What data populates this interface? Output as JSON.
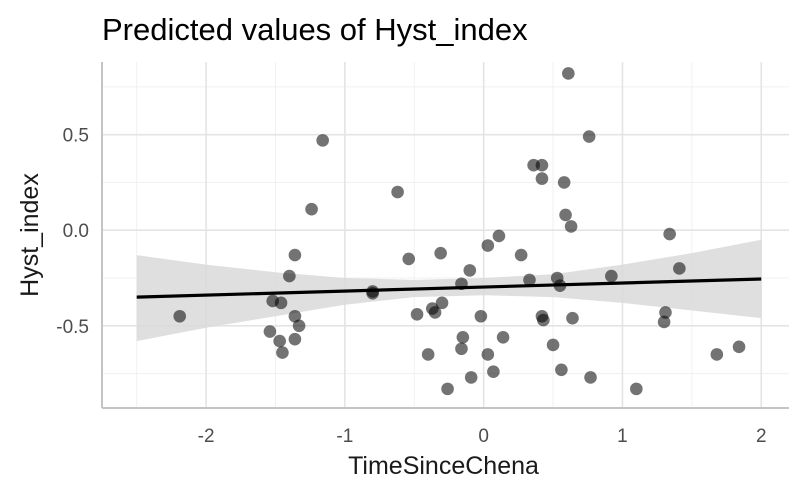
{
  "chart_data": {
    "type": "scatter",
    "title": "Predicted values of Hyst_index",
    "xlabel": "TimeSinceChena",
    "ylabel": "Hyst_index",
    "xlim": [
      -2.75,
      2.2
    ],
    "ylim": [
      -0.93,
      0.88
    ],
    "x_ticks": [
      -2,
      -1,
      0,
      1,
      2
    ],
    "x_tick_labels": [
      "-2",
      "-1",
      "0",
      "1",
      "2"
    ],
    "y_ticks": [
      -0.5,
      0.0,
      0.5
    ],
    "y_tick_labels": [
      "-0.5",
      "0.0",
      "0.5"
    ],
    "x_minor_ticks": [
      -2.5,
      -1.5,
      -0.5,
      0.5,
      1.5
    ],
    "y_minor_ticks": [
      -0.75,
      -0.25,
      0.25,
      0.75
    ],
    "grid": true,
    "colors": {
      "points": "#000000",
      "line": "#000000",
      "ribbon": "#d9d9d9"
    },
    "fit_line": {
      "x": [
        -2.5,
        2.0
      ],
      "y": [
        -0.35,
        -0.255
      ]
    },
    "confidence_band": {
      "x": [
        -2.5,
        -2.0,
        -1.5,
        -1.0,
        -0.5,
        0.0,
        0.5,
        1.0,
        1.5,
        2.0
      ],
      "lower": [
        -0.58,
        -0.51,
        -0.45,
        -0.39,
        -0.35,
        -0.34,
        -0.35,
        -0.38,
        -0.42,
        -0.46
      ],
      "upper": [
        -0.13,
        -0.18,
        -0.22,
        -0.25,
        -0.26,
        -0.25,
        -0.23,
        -0.18,
        -0.12,
        -0.05
      ]
    },
    "points": [
      {
        "x": -2.19,
        "y": -0.45
      },
      {
        "x": -1.16,
        "y": 0.47
      },
      {
        "x": -1.24,
        "y": 0.11
      },
      {
        "x": -1.52,
        "y": -0.37
      },
      {
        "x": -1.54,
        "y": -0.53
      },
      {
        "x": -1.47,
        "y": -0.58
      },
      {
        "x": -1.46,
        "y": -0.38
      },
      {
        "x": -1.45,
        "y": -0.64
      },
      {
        "x": -1.4,
        "y": -0.24
      },
      {
        "x": -1.36,
        "y": -0.13
      },
      {
        "x": -1.36,
        "y": -0.45
      },
      {
        "x": -1.36,
        "y": -0.57
      },
      {
        "x": -1.33,
        "y": -0.5
      },
      {
        "x": -0.8,
        "y": -0.32
      },
      {
        "x": -0.8,
        "y": -0.33
      },
      {
        "x": -0.62,
        "y": 0.2
      },
      {
        "x": -0.54,
        "y": -0.15
      },
      {
        "x": -0.48,
        "y": -0.44
      },
      {
        "x": -0.4,
        "y": -0.65
      },
      {
        "x": -0.37,
        "y": -0.41
      },
      {
        "x": -0.35,
        "y": -0.43
      },
      {
        "x": -0.31,
        "y": -0.12
      },
      {
        "x": -0.3,
        "y": -0.38
      },
      {
        "x": -0.26,
        "y": -0.83
      },
      {
        "x": -0.16,
        "y": -0.28
      },
      {
        "x": -0.15,
        "y": -0.56
      },
      {
        "x": -0.16,
        "y": -0.62
      },
      {
        "x": -0.1,
        "y": -0.21
      },
      {
        "x": -0.09,
        "y": -0.77
      },
      {
        "x": -0.02,
        "y": -0.45
      },
      {
        "x": 0.03,
        "y": -0.08
      },
      {
        "x": 0.03,
        "y": -0.65
      },
      {
        "x": 0.07,
        "y": -0.74
      },
      {
        "x": 0.11,
        "y": -0.03
      },
      {
        "x": 0.14,
        "y": -0.56
      },
      {
        "x": 0.27,
        "y": -0.13
      },
      {
        "x": 0.33,
        "y": -0.26
      },
      {
        "x": 0.36,
        "y": 0.34
      },
      {
        "x": 0.42,
        "y": 0.34
      },
      {
        "x": 0.42,
        "y": 0.27
      },
      {
        "x": 0.42,
        "y": -0.45
      },
      {
        "x": 0.43,
        "y": -0.47
      },
      {
        "x": 0.5,
        "y": -0.6
      },
      {
        "x": 0.53,
        "y": -0.25
      },
      {
        "x": 0.55,
        "y": -0.29
      },
      {
        "x": 0.56,
        "y": -0.73
      },
      {
        "x": 0.58,
        "y": 0.25
      },
      {
        "x": 0.59,
        "y": 0.08
      },
      {
        "x": 0.61,
        "y": 0.82
      },
      {
        "x": 0.63,
        "y": 0.02
      },
      {
        "x": 0.64,
        "y": -0.46
      },
      {
        "x": 0.76,
        "y": 0.49
      },
      {
        "x": 0.77,
        "y": -0.77
      },
      {
        "x": 0.92,
        "y": -0.24
      },
      {
        "x": 1.1,
        "y": -0.83
      },
      {
        "x": 1.3,
        "y": -0.48
      },
      {
        "x": 1.31,
        "y": -0.43
      },
      {
        "x": 1.34,
        "y": -0.02
      },
      {
        "x": 1.41,
        "y": -0.2
      },
      {
        "x": 1.68,
        "y": -0.65
      },
      {
        "x": 1.84,
        "y": -0.61
      }
    ]
  }
}
